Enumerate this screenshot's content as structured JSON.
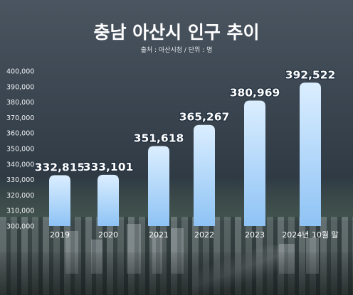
{
  "title": "충남 아산시 인구 추이",
  "subtitle": "출처 : 아산시청 / 단위 : 명",
  "chart_data": {
    "type": "bar",
    "title": "충남 아산시 인구 추이",
    "subtitle": "출처 : 아산시청 / 단위 : 명",
    "categories": [
      "2019",
      "2020",
      "2021",
      "2022",
      "2023",
      "2024년 10월 말"
    ],
    "values": [
      332815,
      333101,
      351618,
      365267,
      380969,
      392522
    ],
    "value_labels": [
      "332,815",
      "333,101",
      "351,618",
      "365,267",
      "380,969",
      "392,522"
    ],
    "ylim": [
      300000,
      400000
    ],
    "yticks": [
      300000,
      310000,
      320000,
      330000,
      340000,
      350000,
      360000,
      370000,
      380000,
      390000,
      400000
    ],
    "ytick_labels": [
      "300,000",
      "310,000",
      "320,000",
      "330,000",
      "340,000",
      "350,000",
      "360,000",
      "370,000",
      "380,000",
      "390,000",
      "400,000"
    ],
    "xlabel": "",
    "ylabel": "",
    "grid": false,
    "colors": {
      "bar_top": "#dbeeff",
      "bar_bottom": "#8ec3f5",
      "text": "#ffffff"
    }
  }
}
